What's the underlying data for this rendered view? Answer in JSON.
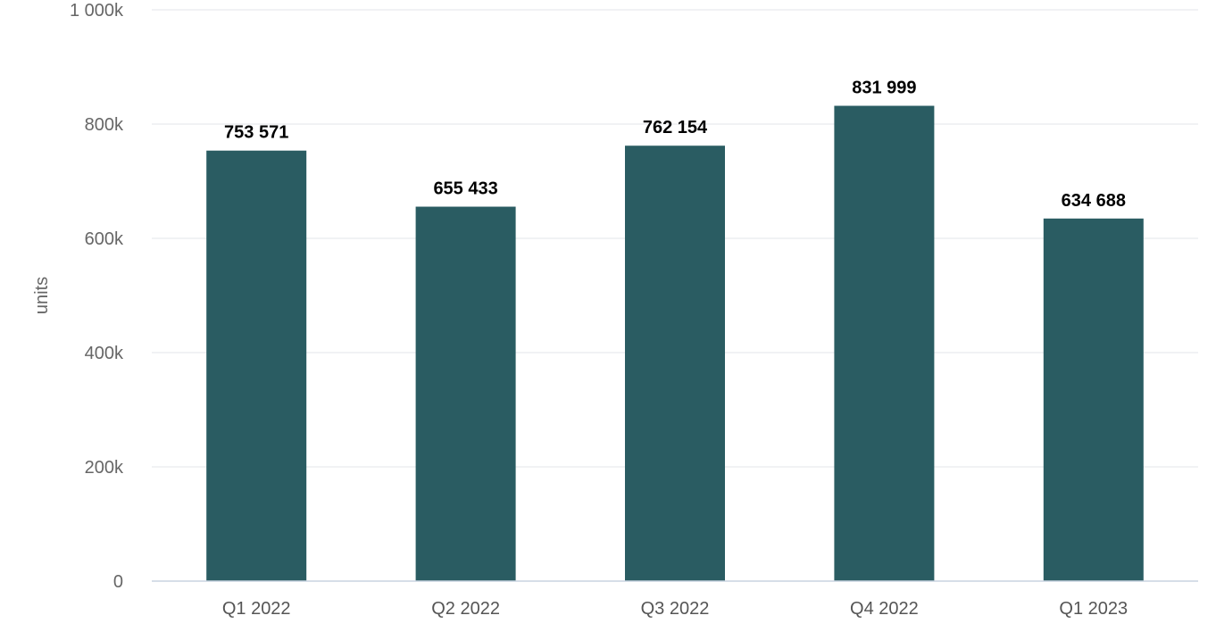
{
  "chart_data": {
    "type": "bar",
    "title": "",
    "xlabel": "",
    "ylabel": "units",
    "ylim": [
      0,
      1000000
    ],
    "yticks": [
      {
        "value": 0,
        "label": "0"
      },
      {
        "value": 200000,
        "label": "200k"
      },
      {
        "value": 400000,
        "label": "400k"
      },
      {
        "value": 600000,
        "label": "600k"
      },
      {
        "value": 800000,
        "label": "800k"
      },
      {
        "value": 1000000,
        "label": "1 000k"
      }
    ],
    "categories": [
      "Q1 2022",
      "Q2 2022",
      "Q3 2022",
      "Q4 2022",
      "Q1 2023"
    ],
    "values": [
      753571,
      655433,
      762154,
      831999,
      634688
    ],
    "data_labels": [
      "753 571",
      "655 433",
      "762 154",
      "831 999",
      "634 688"
    ],
    "bar_color": "#2a5c62",
    "grid": true,
    "legend": "none"
  }
}
